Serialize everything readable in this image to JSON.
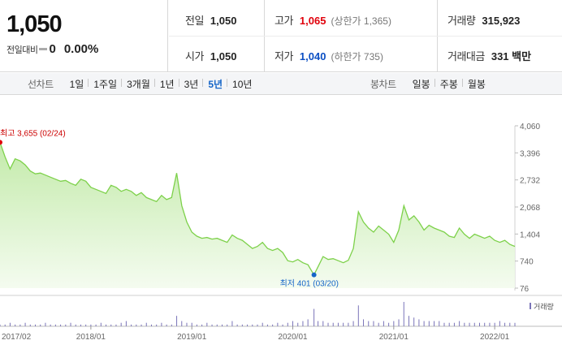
{
  "header": {
    "price": "1,050",
    "change_label": "전일대비",
    "change_value": "0",
    "change_rate": "0.00%",
    "prev_close": {
      "label": "전일",
      "value": "1,050"
    },
    "high": {
      "label": "고가",
      "value": "1,065",
      "sub": "(상한가 1,365)"
    },
    "volume": {
      "label": "거래량",
      "value": "315,923"
    },
    "open": {
      "label": "시가",
      "value": "1,050"
    },
    "low": {
      "label": "저가",
      "value": "1,040",
      "sub": "(하한가 735)"
    },
    "amount": {
      "label": "거래대금",
      "value": "331 백만"
    }
  },
  "tabs": {
    "line_title": "선차트",
    "line_tabs": [
      "1일",
      "1주일",
      "3개월",
      "1년",
      "3년",
      "5년",
      "10년"
    ],
    "line_active": 5,
    "candle_title": "봉차트",
    "candle_tabs": [
      "일봉",
      "주봉",
      "월봉"
    ]
  },
  "colors": {
    "up": "#e0000b",
    "down": "#0b4fc4",
    "line": "#7dd14a",
    "active_tab": "#1565c8"
  },
  "chart_data": {
    "type": "area",
    "x_ticks": [
      "2017/02",
      "2018/01",
      "2019/01",
      "2020/01",
      "2021/01",
      "2022/01"
    ],
    "y_ticks": [
      "4,060",
      "3,396",
      "2,732",
      "2,068",
      "1,404",
      "740",
      "76"
    ],
    "ylim": [
      76,
      4060
    ],
    "x_start": 2017.1,
    "x_end": 2022.2,
    "series": [
      {
        "x": [
          2017.1,
          2017.15,
          2017.2,
          2017.25,
          2017.3,
          2017.35,
          2017.4,
          2017.45,
          2017.5,
          2017.55,
          2017.6,
          2017.65,
          2017.7,
          2017.75,
          2017.8,
          2017.85,
          2017.9,
          2017.95,
          2018.0,
          2018.05,
          2018.1,
          2018.15,
          2018.2,
          2018.25,
          2018.3,
          2018.35,
          2018.4,
          2018.45,
          2018.5,
          2018.55,
          2018.6,
          2018.65,
          2018.7,
          2018.75,
          2018.8,
          2018.85,
          2018.9,
          2018.95,
          2019.0,
          2019.05,
          2019.1,
          2019.15,
          2019.2,
          2019.25,
          2019.3,
          2019.35,
          2019.4,
          2019.45,
          2019.5,
          2019.55,
          2019.6,
          2019.65,
          2019.7,
          2019.75,
          2019.8,
          2019.85,
          2019.9,
          2019.95,
          2020.0,
          2020.05,
          2020.1,
          2020.15,
          2020.21,
          2020.25,
          2020.3,
          2020.35,
          2020.4,
          2020.45,
          2020.5,
          2020.55,
          2020.6,
          2020.65,
          2020.7,
          2020.75,
          2020.8,
          2020.85,
          2020.9,
          2020.95,
          2021.0,
          2021.05,
          2021.1,
          2021.15,
          2021.2,
          2021.25,
          2021.3,
          2021.35,
          2021.4,
          2021.45,
          2021.5,
          2021.55,
          2021.6,
          2021.65,
          2021.7,
          2021.75,
          2021.8,
          2021.85,
          2021.9,
          2021.95,
          2022.0,
          2022.05,
          2022.1,
          2022.15,
          2022.2
        ],
        "y": [
          3655,
          3300,
          3000,
          3250,
          3200,
          3100,
          2950,
          2880,
          2900,
          2850,
          2800,
          2750,
          2700,
          2720,
          2650,
          2600,
          2750,
          2700,
          2550,
          2500,
          2450,
          2400,
          2600,
          2550,
          2450,
          2500,
          2450,
          2350,
          2420,
          2300,
          2250,
          2200,
          2350,
          2250,
          2300,
          2900,
          2100,
          1700,
          1450,
          1350,
          1300,
          1320,
          1280,
          1300,
          1250,
          1200,
          1380,
          1300,
          1250,
          1150,
          1050,
          1100,
          1200,
          1050,
          1000,
          1050,
          950,
          750,
          720,
          780,
          700,
          650,
          401,
          600,
          850,
          780,
          800,
          750,
          700,
          760,
          1050,
          1950,
          1700,
          1550,
          1450,
          1600,
          1500,
          1400,
          1200,
          1500,
          2100,
          1750,
          1850,
          1700,
          1500,
          1620,
          1550,
          1500,
          1450,
          1350,
          1320,
          1550,
          1400,
          1300,
          1400,
          1350,
          1300,
          1350,
          1250,
          1200,
          1250,
          1150,
          1100
        ]
      }
    ],
    "annotations": [
      {
        "type": "max",
        "text": "최고 3,655 (02/24)",
        "x": 2017.1,
        "y": 3655
      },
      {
        "type": "min",
        "text": "최저 401 (03/20)",
        "x": 2020.21,
        "y": 401
      }
    ],
    "volume_legend": "거래량",
    "volume": [
      1,
      1,
      2,
      1,
      1,
      2,
      1,
      1,
      1,
      2,
      1,
      1,
      1,
      1,
      2,
      1,
      1,
      1,
      1,
      1,
      2,
      1,
      1,
      1,
      2,
      3,
      1,
      1,
      1,
      2,
      1,
      1,
      2,
      1,
      1,
      6,
      3,
      2,
      2,
      1,
      1,
      2,
      1,
      1,
      1,
      1,
      3,
      1,
      1,
      1,
      1,
      1,
      2,
      1,
      1,
      2,
      1,
      2,
      3,
      2,
      3,
      4,
      10,
      3,
      3,
      2,
      2,
      2,
      2,
      2,
      3,
      12,
      4,
      3,
      3,
      2,
      3,
      2,
      3,
      4,
      14,
      6,
      5,
      4,
      3,
      3,
      3,
      3,
      2,
      2,
      2,
      3,
      2,
      2,
      2,
      2,
      2,
      2,
      2,
      3,
      2,
      2,
      2
    ]
  }
}
